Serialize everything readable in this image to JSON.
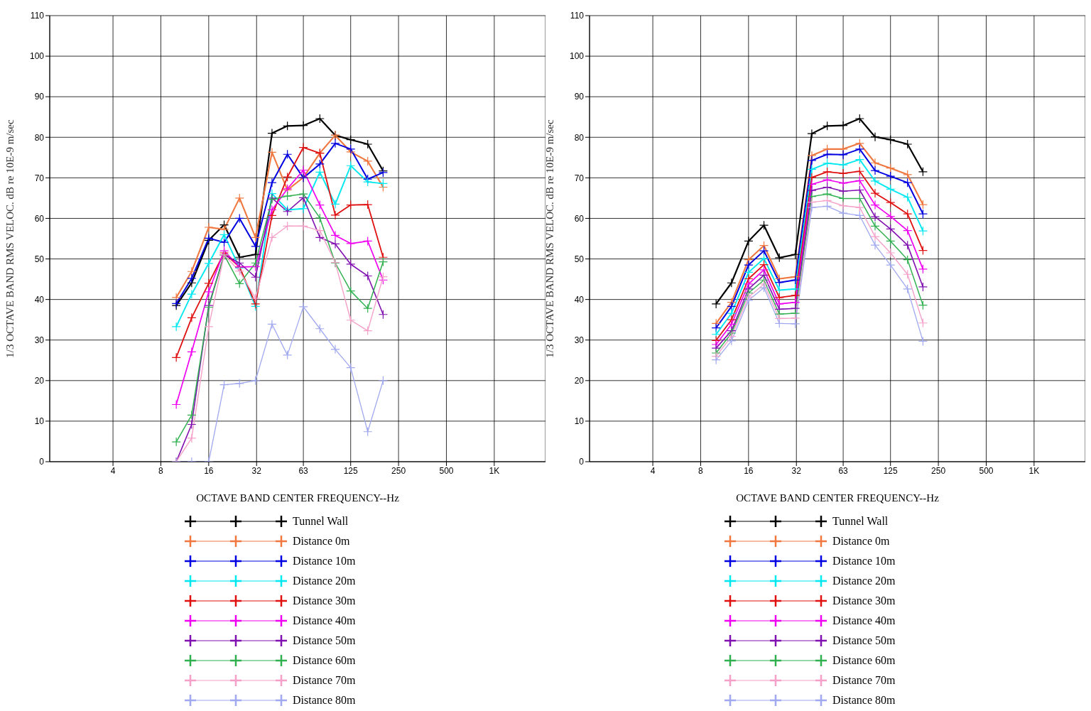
{
  "chart_data": [
    {
      "type": "line",
      "xlabel": "OCTAVE BAND CENTER FREQUENCY--Hz",
      "ylabel": "1/3 OCTAVE BAND RMS VELOC. dB re 10E-9 m/sec",
      "x": [
        10,
        12.5,
        16,
        20,
        25,
        31.5,
        40,
        50,
        63,
        80,
        100,
        125,
        160,
        200
      ],
      "log": "x",
      "xlim": [
        1.6,
        2100
      ],
      "ylim": [
        0,
        110
      ],
      "xticks": [
        4,
        8,
        16,
        32,
        63,
        125,
        250,
        500,
        {
          "value": 1000,
          "label": "1K"
        }
      ],
      "yticks": [
        0,
        10,
        20,
        30,
        40,
        50,
        60,
        70,
        80,
        90,
        100,
        110
      ],
      "grid": true,
      "legend": "bottom",
      "marker": "cross",
      "line_style": "solid",
      "series": [
        {
          "name": "Tunnel Wall",
          "color": "#000000",
          "values": [
            38.5,
            44.1,
            54.6,
            58.4,
            50.4,
            51.1,
            81,
            82.8,
            82.9,
            84.6,
            80.5,
            79.4,
            78.3,
            71.7
          ]
        },
        {
          "name": "Distance 0m",
          "color": "#f07840",
          "values": [
            40.5,
            46.9,
            57.8,
            57.3,
            65,
            55.3,
            76.3,
            67,
            70.1,
            76.1,
            80.5,
            76.4,
            74.1,
            67.7
          ]
        },
        {
          "name": "Distance 10m",
          "color": "#0000e0",
          "values": [
            39,
            45.2,
            55.1,
            54.1,
            60,
            53.1,
            68.8,
            75.8,
            70,
            73.4,
            78.5,
            77.1,
            69.7,
            71.3
          ]
        },
        {
          "name": "Distance 20m",
          "color": "#00e8f0",
          "values": [
            33.3,
            41.3,
            48.9,
            56,
            47.8,
            38.3,
            66.1,
            62.1,
            62.4,
            71.4,
            63.5,
            73,
            69,
            68.6
          ]
        },
        {
          "name": "Distance 30m",
          "color": "#e01010",
          "values": [
            25.7,
            35.5,
            44,
            51.5,
            48,
            38.9,
            60.7,
            70.2,
            77.5,
            76.1,
            60.8,
            63.3,
            63.4,
            50.4
          ]
        },
        {
          "name": "Distance 40m",
          "color": "#f000f0",
          "values": [
            14.1,
            27.1,
            41.9,
            52,
            48,
            48.1,
            62.1,
            67.3,
            71.9,
            63.3,
            55.8,
            53.8,
            54.4,
            44.8
          ]
        },
        {
          "name": "Distance 50m",
          "color": "#8010b0",
          "values": [
            0,
            9.2,
            38.5,
            51,
            49,
            45.5,
            65,
            61.7,
            65.1,
            55.3,
            53.7,
            48.7,
            45.8,
            36.3
          ]
        },
        {
          "name": "Distance 60m",
          "color": "#30b050",
          "values": [
            4.9,
            11.5,
            38.1,
            51,
            43.9,
            49,
            64.7,
            65.5,
            66,
            60.1,
            49,
            42.1,
            37.8,
            49.3
          ]
        },
        {
          "name": "Distance 70m",
          "color": "#f4a0c8",
          "values": [
            0,
            5.8,
            33.3,
            51,
            47,
            40.3,
            55.3,
            58.1,
            58.1,
            57,
            49.1,
            34.9,
            32.3,
            45.6
          ]
        },
        {
          "name": "Distance 80m",
          "color": "#a0a8f0",
          "values": [
            0,
            0,
            0,
            19,
            19.3,
            20,
            33.9,
            26.3,
            38.2,
            32.8,
            27.7,
            23.2,
            7.4,
            20
          ]
        }
      ]
    },
    {
      "type": "line",
      "xlabel": "OCTAVE BAND CENTER FREQUENCY--Hz",
      "ylabel": "1/3 OCTAVE BAND RMS VELOC. dB re 10E-9 m/sec",
      "x": [
        10,
        12.5,
        16,
        20,
        25,
        31.5,
        40,
        50,
        63,
        80,
        100,
        125,
        160,
        200
      ],
      "log": "x",
      "xlim": [
        1.6,
        2100
      ],
      "ylim": [
        0,
        110
      ],
      "xticks": [
        4,
        8,
        16,
        32,
        63,
        125,
        250,
        500,
        {
          "value": 1000,
          "label": "1K"
        }
      ],
      "yticks": [
        0,
        10,
        20,
        30,
        40,
        50,
        60,
        70,
        80,
        90,
        100,
        110
      ],
      "grid": true,
      "legend": "bottom",
      "marker": "cross",
      "line_style": "solid",
      "series": [
        {
          "name": "Tunnel Wall",
          "color": "#000000",
          "values": [
            38.9,
            44.1,
            54.4,
            58.3,
            50.3,
            51.1,
            80.9,
            82.8,
            82.9,
            84.6,
            80.1,
            79.4,
            78.3,
            71.5
          ]
        },
        {
          "name": "Distance 0m",
          "color": "#f07840",
          "values": [
            34.1,
            39.3,
            49.8,
            53.3,
            45.1,
            45.6,
            75.5,
            77.1,
            77.1,
            78.5,
            73.7,
            72.4,
            70.8,
            63.4
          ]
        },
        {
          "name": "Distance 10m",
          "color": "#0000e0",
          "values": [
            33,
            38.3,
            48.5,
            52,
            44.2,
            44.8,
            74.3,
            75.8,
            75.7,
            77.1,
            71.8,
            70.4,
            68.8,
            61.1
          ]
        },
        {
          "name": "Distance 20m",
          "color": "#00e8f0",
          "values": [
            31.4,
            36.6,
            46.7,
            50.1,
            42.3,
            42.6,
            72.1,
            73.6,
            73.2,
            74.5,
            69.2,
            67.2,
            65.2,
            56.9
          ]
        },
        {
          "name": "Distance 30m",
          "color": "#e01010",
          "values": [
            29.9,
            35,
            45.1,
            48.6,
            40.5,
            41,
            70.1,
            71.5,
            71.1,
            71.6,
            66.2,
            63.9,
            61.1,
            52.1
          ]
        },
        {
          "name": "Distance 40m",
          "color": "#f000f0",
          "values": [
            28.9,
            33.9,
            43.8,
            47.3,
            38.9,
            39.3,
            68.4,
            69.5,
            68.7,
            69.3,
            63.3,
            60.5,
            57,
            47.5
          ]
        },
        {
          "name": "Distance 50m",
          "color": "#8010b0",
          "values": [
            28,
            32.3,
            42.6,
            46,
            37.6,
            37.8,
            66.9,
            67.7,
            66.7,
            67,
            60.4,
            57.4,
            53.4,
            43.1
          ]
        },
        {
          "name": "Distance 60m",
          "color": "#30b050",
          "values": [
            26.8,
            31.7,
            41.6,
            44.8,
            36.4,
            36.6,
            65.4,
            66,
            64.9,
            64.9,
            58.1,
            54.4,
            49.8,
            38.6
          ]
        },
        {
          "name": "Distance 70m",
          "color": "#f4a0c8",
          "values": [
            26,
            30.9,
            40.6,
            43.8,
            35.3,
            35.4,
            64,
            64.4,
            63.1,
            62.7,
            55.5,
            51.5,
            46.2,
            34.2
          ]
        },
        {
          "name": "Distance 80m",
          "color": "#a0a8f0",
          "values": [
            25.1,
            29.8,
            39.8,
            42.9,
            34.1,
            34,
            62.7,
            63,
            61.3,
            60.7,
            53.4,
            48.5,
            42.6,
            29.7
          ]
        }
      ]
    }
  ]
}
